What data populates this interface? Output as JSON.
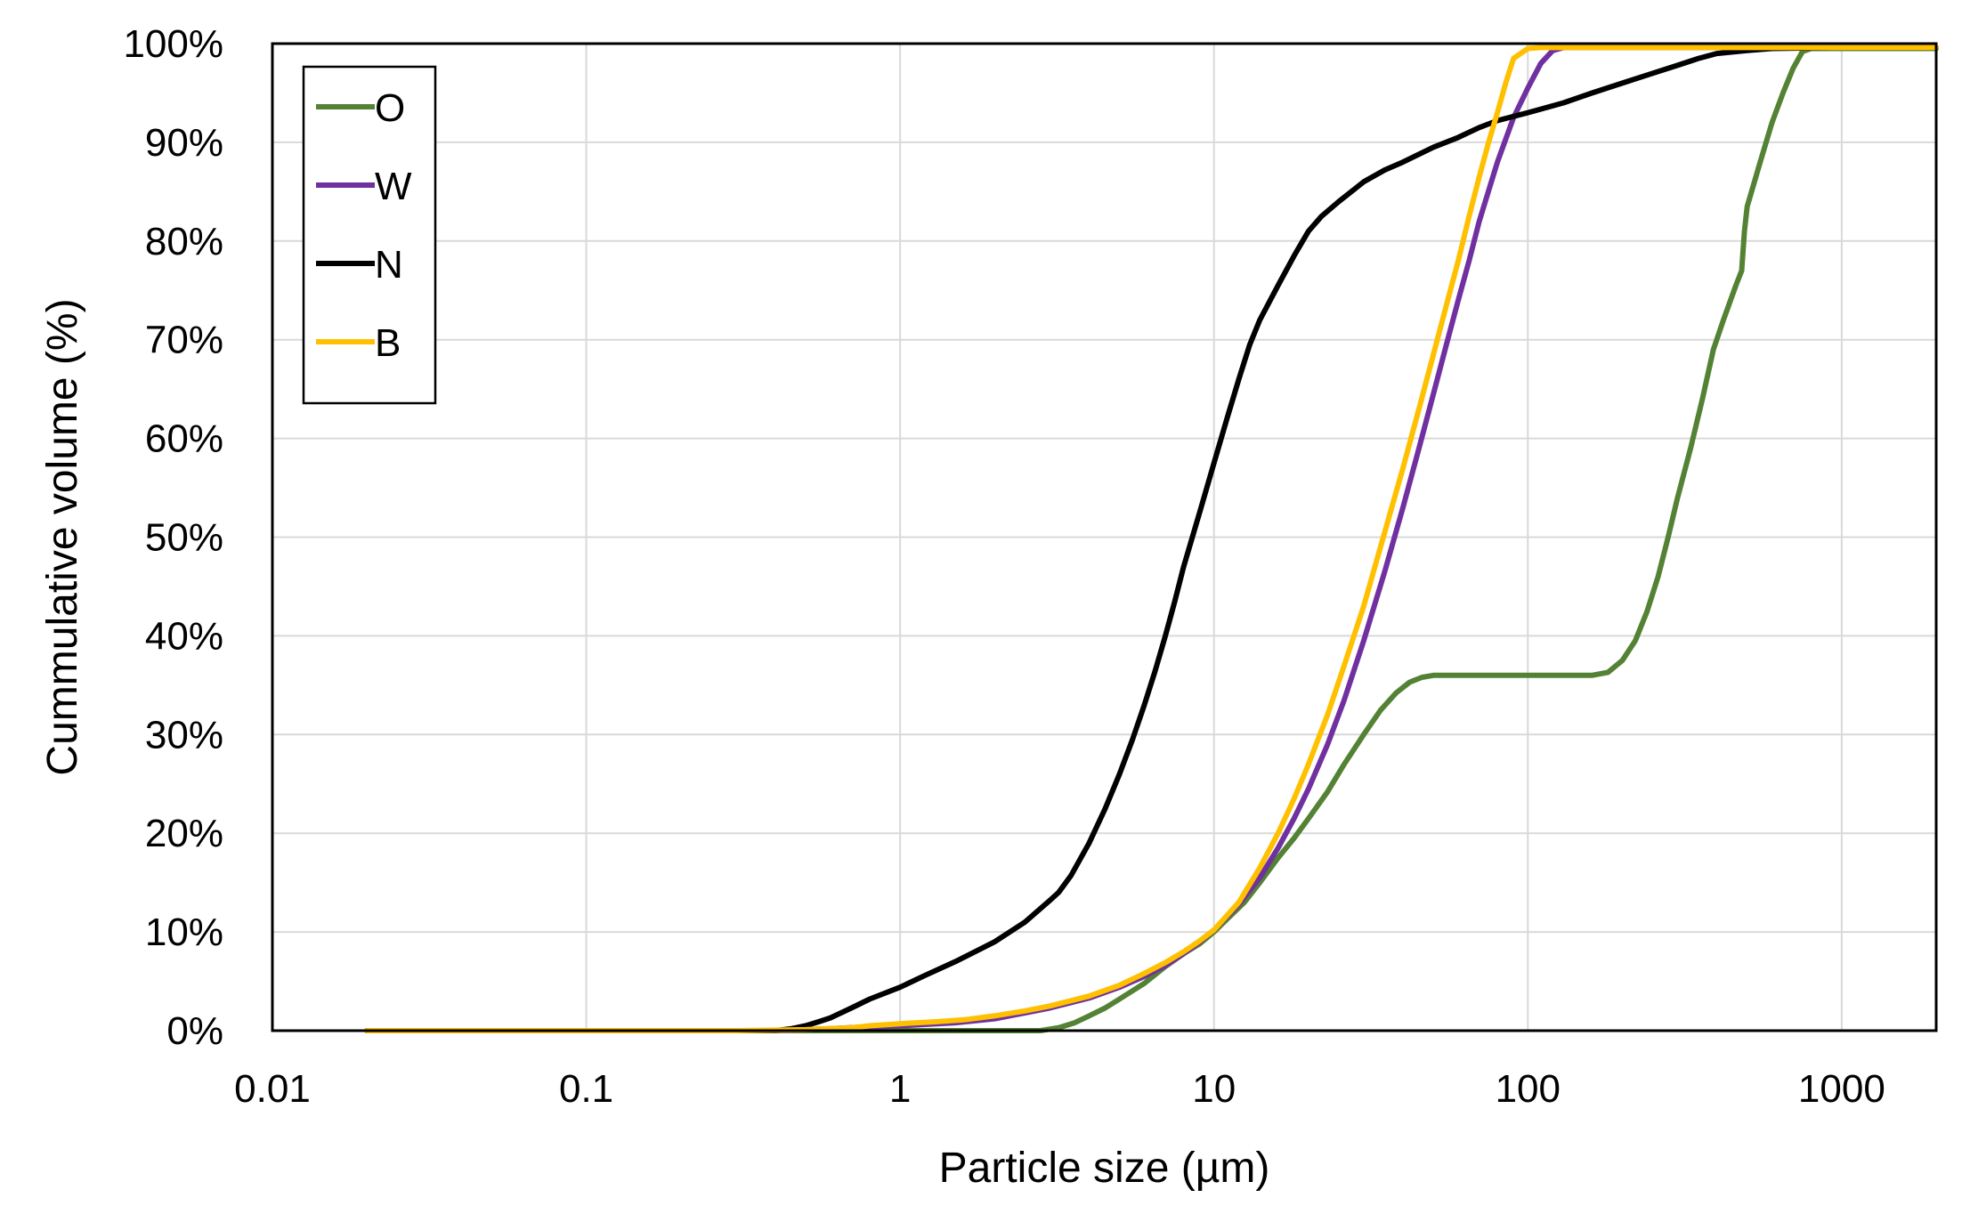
{
  "chart_data": {
    "type": "line",
    "title": "",
    "xlabel": "Particle size (µm)",
    "ylabel": "Cummulative volume (%)",
    "xscale": "log",
    "xlim": [
      0.01,
      2000
    ],
    "ylim": [
      0,
      100
    ],
    "grid": true,
    "legend_position": "top-left",
    "x_ticks": [
      {
        "value": 0.01,
        "label": "0.01"
      },
      {
        "value": 0.1,
        "label": "0.1"
      },
      {
        "value": 1,
        "label": "1"
      },
      {
        "value": 10,
        "label": "10"
      },
      {
        "value": 100,
        "label": "100"
      },
      {
        "value": 1000,
        "label": "1000"
      }
    ],
    "y_ticks": [
      {
        "value": 0,
        "label": "0%"
      },
      {
        "value": 10,
        "label": "10%"
      },
      {
        "value": 20,
        "label": "20%"
      },
      {
        "value": 30,
        "label": "30%"
      },
      {
        "value": 40,
        "label": "40%"
      },
      {
        "value": 50,
        "label": "50%"
      },
      {
        "value": 60,
        "label": "60%"
      },
      {
        "value": 70,
        "label": "70%"
      },
      {
        "value": 80,
        "label": "80%"
      },
      {
        "value": 90,
        "label": "90%"
      },
      {
        "value": 100,
        "label": "100%"
      }
    ],
    "series": [
      {
        "name": "O",
        "color": "#548235",
        "points": [
          [
            0.02,
            0
          ],
          [
            0.1,
            0
          ],
          [
            0.5,
            0
          ],
          [
            1,
            0
          ],
          [
            1.5,
            0
          ],
          [
            2,
            0
          ],
          [
            2.8,
            0
          ],
          [
            3.2,
            0.3
          ],
          [
            3.6,
            0.8
          ],
          [
            4,
            1.5
          ],
          [
            4.5,
            2.3
          ],
          [
            5,
            3.2
          ],
          [
            6,
            4.8
          ],
          [
            7,
            6.5
          ],
          [
            8,
            7.8
          ],
          [
            9,
            8.8
          ],
          [
            10,
            10
          ],
          [
            11,
            11.3
          ],
          [
            12.5,
            13
          ],
          [
            14,
            15
          ],
          [
            16,
            17.5
          ],
          [
            18,
            19.5
          ],
          [
            20,
            21.5
          ],
          [
            23,
            24.2
          ],
          [
            26,
            27
          ],
          [
            30,
            30
          ],
          [
            34,
            32.5
          ],
          [
            38,
            34.2
          ],
          [
            42,
            35.3
          ],
          [
            46,
            35.8
          ],
          [
            50,
            36
          ],
          [
            60,
            36
          ],
          [
            80,
            36
          ],
          [
            100,
            36
          ],
          [
            130,
            36
          ],
          [
            160,
            36
          ],
          [
            180,
            36.3
          ],
          [
            200,
            37.5
          ],
          [
            220,
            39.5
          ],
          [
            240,
            42.5
          ],
          [
            260,
            46
          ],
          [
            280,
            50
          ],
          [
            300,
            54
          ],
          [
            330,
            59
          ],
          [
            360,
            64
          ],
          [
            390,
            69
          ],
          [
            420,
            72
          ],
          [
            460,
            75.5
          ],
          [
            480,
            77
          ],
          [
            490,
            81
          ],
          [
            500,
            83.5
          ],
          [
            550,
            88
          ],
          [
            600,
            92
          ],
          [
            650,
            95
          ],
          [
            700,
            97.5
          ],
          [
            750,
            99.2
          ],
          [
            800,
            99.5
          ],
          [
            1000,
            99.5
          ],
          [
            2000,
            99.5
          ]
        ]
      },
      {
        "name": "W",
        "color": "#7030A0",
        "points": [
          [
            0.02,
            0
          ],
          [
            0.1,
            0
          ],
          [
            0.4,
            0
          ],
          [
            0.6,
            0.2
          ],
          [
            0.8,
            0.4
          ],
          [
            1,
            0.5
          ],
          [
            1.5,
            0.8
          ],
          [
            2,
            1.2
          ],
          [
            2.5,
            1.8
          ],
          [
            3,
            2.3
          ],
          [
            4,
            3.3
          ],
          [
            5,
            4.4
          ],
          [
            6,
            5.5
          ],
          [
            7,
            6.6
          ],
          [
            8,
            7.8
          ],
          [
            9,
            9
          ],
          [
            10,
            10.2
          ],
          [
            12,
            12.8
          ],
          [
            14,
            15.5
          ],
          [
            16,
            18.5
          ],
          [
            18,
            21.5
          ],
          [
            20,
            24.5
          ],
          [
            23,
            29
          ],
          [
            26,
            33.5
          ],
          [
            30,
            39.5
          ],
          [
            35,
            46.5
          ],
          [
            40,
            53
          ],
          [
            45,
            59
          ],
          [
            50,
            64.5
          ],
          [
            55,
            69.5
          ],
          [
            60,
            74
          ],
          [
            65,
            78
          ],
          [
            70,
            82
          ],
          [
            80,
            88
          ],
          [
            90,
            92.5
          ],
          [
            100,
            95.5
          ],
          [
            110,
            98
          ],
          [
            120,
            99.3
          ],
          [
            130,
            99.6
          ],
          [
            200,
            99.6
          ],
          [
            1000,
            99.6
          ],
          [
            2000,
            99.6
          ]
        ]
      },
      {
        "name": "N",
        "color": "#000000",
        "points": [
          [
            0.02,
            0
          ],
          [
            0.1,
            0
          ],
          [
            0.3,
            0
          ],
          [
            0.4,
            0
          ],
          [
            0.45,
            0.2
          ],
          [
            0.5,
            0.5
          ],
          [
            0.55,
            0.9
          ],
          [
            0.6,
            1.3
          ],
          [
            0.7,
            2.3
          ],
          [
            0.8,
            3.2
          ],
          [
            1,
            4.4
          ],
          [
            1.2,
            5.6
          ],
          [
            1.5,
            7
          ],
          [
            2,
            9
          ],
          [
            2.5,
            11
          ],
          [
            3,
            13.2
          ],
          [
            3.2,
            14
          ],
          [
            3.5,
            15.7
          ],
          [
            4,
            19
          ],
          [
            4.5,
            22.5
          ],
          [
            5,
            26
          ],
          [
            5.5,
            29.5
          ],
          [
            6,
            33
          ],
          [
            6.5,
            36.5
          ],
          [
            7,
            40
          ],
          [
            7.5,
            43.5
          ],
          [
            8,
            47
          ],
          [
            9,
            52.5
          ],
          [
            10,
            57.5
          ],
          [
            11,
            62
          ],
          [
            12,
            66
          ],
          [
            13,
            69.5
          ],
          [
            14,
            72
          ],
          [
            16,
            75.5
          ],
          [
            18,
            78.5
          ],
          [
            20,
            81
          ],
          [
            22,
            82.5
          ],
          [
            25,
            84
          ],
          [
            30,
            86
          ],
          [
            35,
            87.2
          ],
          [
            40,
            88
          ],
          [
            50,
            89.5
          ],
          [
            60,
            90.5
          ],
          [
            70,
            91.5
          ],
          [
            80,
            92.2
          ],
          [
            100,
            93
          ],
          [
            130,
            94
          ],
          [
            160,
            95
          ],
          [
            200,
            96
          ],
          [
            250,
            97
          ],
          [
            300,
            97.8
          ],
          [
            350,
            98.5
          ],
          [
            400,
            99
          ],
          [
            500,
            99.3
          ],
          [
            600,
            99.5
          ],
          [
            1000,
            99.6
          ],
          [
            2000,
            99.6
          ]
        ]
      },
      {
        "name": "B",
        "color": "#FFC000",
        "points": [
          [
            0.02,
            0
          ],
          [
            0.1,
            0
          ],
          [
            0.3,
            0
          ],
          [
            0.5,
            0.1
          ],
          [
            0.7,
            0.3
          ],
          [
            0.8,
            0.5
          ],
          [
            1,
            0.7
          ],
          [
            1.3,
            0.9
          ],
          [
            1.6,
            1.1
          ],
          [
            2,
            1.5
          ],
          [
            2.5,
            2
          ],
          [
            3,
            2.5
          ],
          [
            4,
            3.5
          ],
          [
            5,
            4.6
          ],
          [
            6,
            5.8
          ],
          [
            7,
            6.9
          ],
          [
            8,
            8
          ],
          [
            9,
            9.1
          ],
          [
            10,
            10.2
          ],
          [
            12,
            13
          ],
          [
            14,
            16.5
          ],
          [
            16,
            20
          ],
          [
            18,
            23.5
          ],
          [
            20,
            27
          ],
          [
            23,
            32
          ],
          [
            26,
            37
          ],
          [
            30,
            43
          ],
          [
            35,
            50.5
          ],
          [
            40,
            57
          ],
          [
            45,
            63
          ],
          [
            50,
            68.5
          ],
          [
            55,
            73.5
          ],
          [
            60,
            78
          ],
          [
            65,
            82.5
          ],
          [
            70,
            86.5
          ],
          [
            75,
            90
          ],
          [
            80,
            93
          ],
          [
            85,
            96
          ],
          [
            90,
            98.5
          ],
          [
            100,
            99.5
          ],
          [
            110,
            99.6
          ],
          [
            1000,
            99.6
          ],
          [
            2000,
            99.6
          ]
        ]
      }
    ]
  }
}
